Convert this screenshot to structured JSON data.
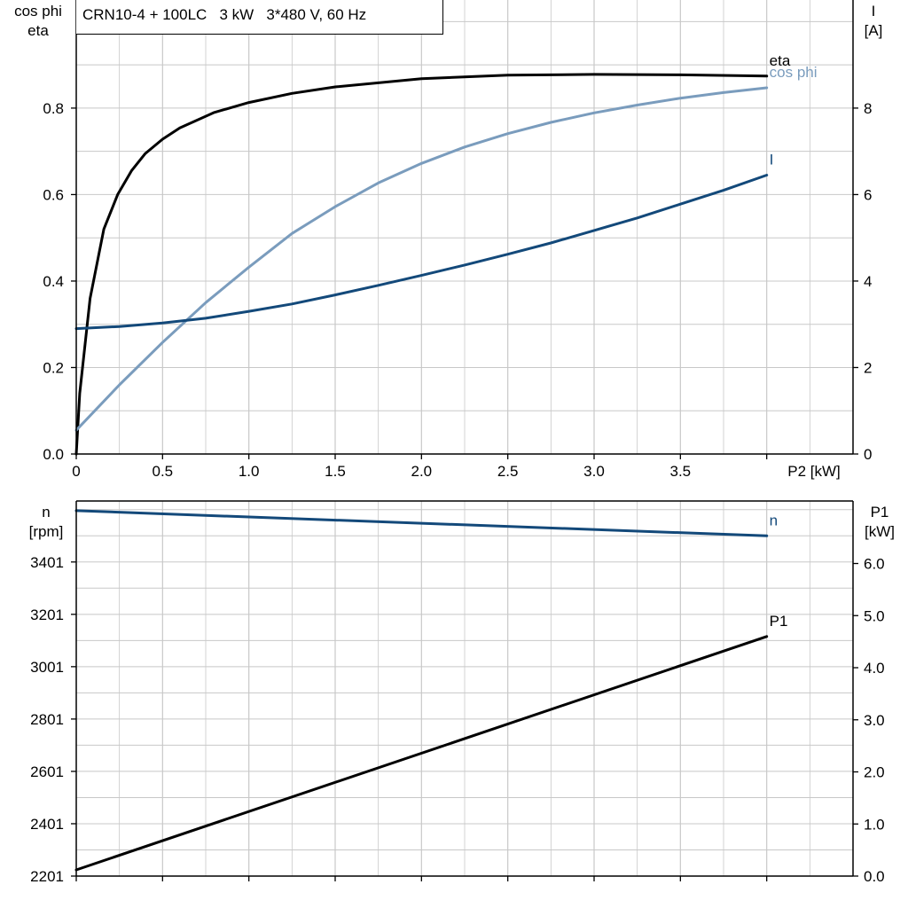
{
  "title": "CRN10-4 + 100LC   3 kW   3*480 V, 60 Hz",
  "colors": {
    "eta": "#000000",
    "cos_phi": "#7a9cbd",
    "I": "#13497a",
    "n": "#13497a",
    "P1": "#000000",
    "grid": "#c8c8c8"
  },
  "chart_data": [
    {
      "type": "line",
      "x_axis": {
        "label": "P2 [kW]",
        "range": [
          0,
          4.5
        ],
        "ticks": [
          "0",
          "0.5",
          "1.0",
          "1.5",
          "2.0",
          "2.5",
          "3.0",
          "3.5"
        ],
        "tick_values": [
          0,
          0.5,
          1.0,
          1.5,
          2.0,
          2.5,
          3.0,
          3.5
        ]
      },
      "y_left": {
        "label_lines": [
          "cos phi",
          "eta"
        ],
        "range": [
          0,
          1.05
        ],
        "ticks": [
          "0.0",
          "0.2",
          "0.4",
          "0.6",
          "0.8"
        ],
        "tick_values": [
          0,
          0.2,
          0.4,
          0.6,
          0.8
        ]
      },
      "y_right": {
        "label_lines": [
          "I",
          "[A]"
        ],
        "range": [
          0,
          10.5
        ],
        "ticks": [
          "0",
          "2",
          "4",
          "6",
          "8"
        ],
        "tick_values": [
          0,
          2,
          4,
          6,
          8
        ]
      },
      "grid": true,
      "series": [
        {
          "name": "eta",
          "axis": "left",
          "color": "#000000",
          "x": [
            0,
            0.02,
            0.08,
            0.16,
            0.24,
            0.32,
            0.4,
            0.5,
            0.6,
            0.8,
            1.0,
            1.25,
            1.5,
            2.0,
            2.5,
            3.0,
            3.5,
            4.0
          ],
          "y": [
            0,
            0.14,
            0.36,
            0.52,
            0.6,
            0.655,
            0.695,
            0.728,
            0.754,
            0.79,
            0.813,
            0.834,
            0.849,
            0.868,
            0.876,
            0.878,
            0.877,
            0.874
          ]
        },
        {
          "name": "cos phi",
          "axis": "left",
          "color": "#7a9cbd",
          "x": [
            0,
            0.25,
            0.5,
            0.75,
            1.0,
            1.25,
            1.5,
            1.75,
            2.0,
            2.25,
            2.5,
            2.75,
            3.0,
            3.25,
            3.5,
            3.75,
            4.0
          ],
          "y": [
            0.055,
            0.16,
            0.258,
            0.35,
            0.432,
            0.51,
            0.572,
            0.627,
            0.672,
            0.71,
            0.741,
            0.767,
            0.789,
            0.807,
            0.823,
            0.836,
            0.847
          ]
        },
        {
          "name": "I",
          "axis": "right",
          "color": "#13497a",
          "x": [
            0,
            0.25,
            0.5,
            0.75,
            1.0,
            1.25,
            1.5,
            1.75,
            2.0,
            2.25,
            2.5,
            2.75,
            3.0,
            3.25,
            3.5,
            3.75,
            4.0
          ],
          "y": [
            2.9,
            2.95,
            3.03,
            3.14,
            3.3,
            3.47,
            3.68,
            3.9,
            4.13,
            4.37,
            4.62,
            4.88,
            5.17,
            5.46,
            5.78,
            6.1,
            6.45
          ]
        }
      ]
    },
    {
      "type": "line",
      "x_axis": {
        "label": "",
        "range": [
          0,
          4.5
        ],
        "tick_values": [
          0,
          0.5,
          1.0,
          1.5,
          2.0,
          2.5,
          3.0,
          3.5,
          4.0
        ]
      },
      "y_left": {
        "label_lines": [
          "n",
          "[rpm]"
        ],
        "range": [
          2201,
          3634
        ],
        "ticks": [
          "2201",
          "2401",
          "2601",
          "2801",
          "3001",
          "3201",
          "3401"
        ],
        "tick_values": [
          2201,
          2401,
          2601,
          2801,
          3001,
          3201,
          3401
        ]
      },
      "y_right": {
        "label_lines": [
          "P1",
          "[kW]"
        ],
        "range": [
          0,
          7.2
        ],
        "ticks": [
          "0.0",
          "1.0",
          "2.0",
          "3.0",
          "4.0",
          "5.0",
          "6.0"
        ],
        "tick_values": [
          0,
          1,
          2,
          3,
          4,
          5,
          6
        ]
      },
      "grid": true,
      "series": [
        {
          "name": "n",
          "axis": "left",
          "color": "#13497a",
          "x": [
            0,
            4.0
          ],
          "y": [
            3597,
            3501
          ]
        },
        {
          "name": "P1",
          "axis": "right",
          "color": "#000000",
          "x": [
            0,
            4.0
          ],
          "y": [
            0.12,
            4.6
          ]
        }
      ]
    }
  ]
}
